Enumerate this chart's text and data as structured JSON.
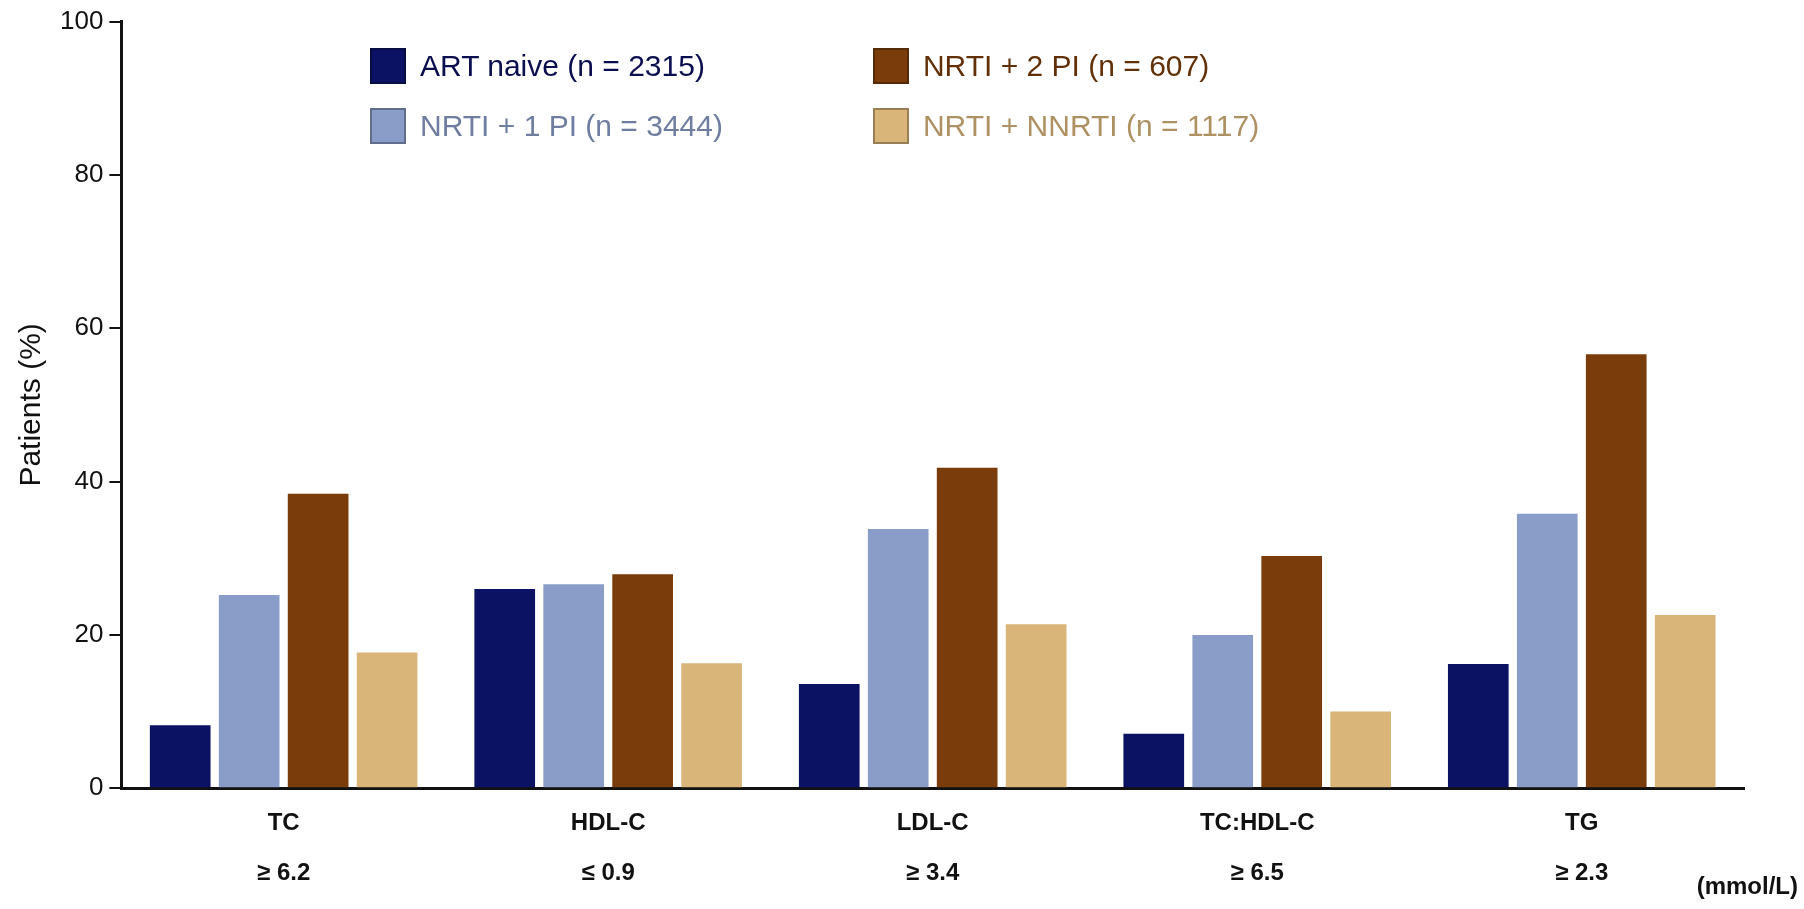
{
  "chart_data": {
    "type": "bar",
    "ylabel": "Patients (%)",
    "categories": [
      "TC\n≥ 6.2",
      "HDL-C\n≤ 0.9",
      "LDL-C\n≥ 3.4",
      "TC:HDL-C\n≥ 6.5",
      "TG\n≥ 2.3"
    ],
    "series": [
      {
        "name": "ART naive (n = 2315)",
        "color": "#0c1263",
        "values": [
          8.2,
          26.0,
          13.6,
          7.1,
          16.2
        ]
      },
      {
        "name": "NRTI + 1 PI (n = 3444)",
        "color": "#8a9cc8",
        "values": [
          25.2,
          26.6,
          33.8,
          20.0,
          35.8
        ]
      },
      {
        "name": "NRTI + 2 PI (n = 607)",
        "color": "#7a3c0a",
        "values": [
          38.4,
          27.9,
          41.8,
          30.3,
          56.6
        ]
      },
      {
        "name": "NRTI + NNRTI (n = 1117)",
        "color": "#d9b57a",
        "values": [
          17.7,
          16.3,
          21.4,
          10.0,
          22.6
        ]
      }
    ],
    "ylim": [
      0,
      100
    ],
    "yticks": [
      0,
      20,
      40,
      60,
      80,
      100
    ],
    "grid": false,
    "legend": "top",
    "annotations": [
      "(mmol/L)"
    ]
  }
}
